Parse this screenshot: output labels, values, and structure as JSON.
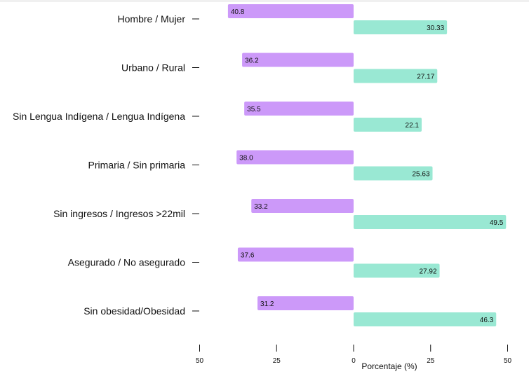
{
  "chart_data": {
    "type": "bar",
    "orientation": "horizontal-diverging",
    "categories": [
      "Hombre / Mujer",
      "Urbano / Rural",
      "Sin Lengua Indígena /  Lengua Indígena",
      "Primaria / Sin primaria",
      "Sin ingresos / Ingresos >22mil",
      "Asegurado / No asegurado",
      "Sin obesidad/Obesidad"
    ],
    "series": [
      {
        "name": "left",
        "side": "left",
        "color": "#cc99f9",
        "values": [
          40.8,
          36.2,
          35.5,
          38.0,
          33.2,
          37.6,
          31.2
        ],
        "labels": [
          "40.8",
          "36.2",
          "35.5",
          "38.0",
          "33.2",
          "37.6",
          "31.2"
        ]
      },
      {
        "name": "right",
        "side": "right",
        "color": "#99e8d3",
        "values": [
          30.33,
          27.17,
          22.1,
          25.63,
          49.5,
          27.92,
          46.3
        ],
        "labels": [
          "30.33",
          "27.17",
          "22.1",
          "25.63",
          "49.5",
          "27.92",
          "46.3"
        ]
      }
    ],
    "xlabel": "Porcentaje (%)",
    "xticks": [
      {
        "value": -50,
        "label": "50"
      },
      {
        "value": -25,
        "label": "25"
      },
      {
        "value": 0,
        "label": "0"
      },
      {
        "value": 25,
        "label": "25"
      },
      {
        "value": 50,
        "label": "50"
      }
    ],
    "xlim": [
      -50,
      50
    ],
    "grid": false
  }
}
